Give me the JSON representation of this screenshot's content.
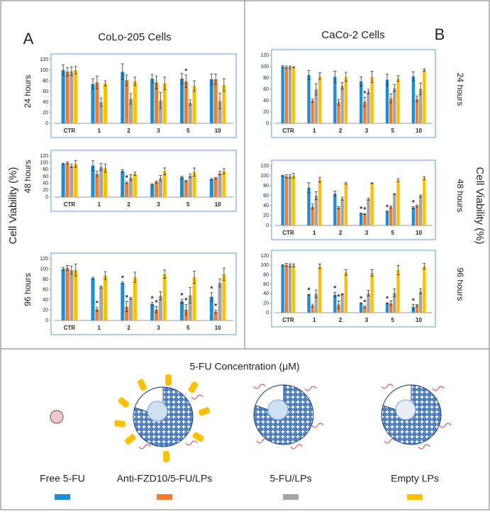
{
  "figure": {
    "label_a": "A",
    "label_b": "B",
    "title_a": "CoLo-205 Cells",
    "title_b": "CaCo-2 Cells",
    "ylabel": "Cell Viability  (%)",
    "xlabel": "5-FU Concentration (μM)"
  },
  "chart_data": [
    {
      "type": "bar",
      "ylabel": "24 hours",
      "categories": [
        "CTR",
        "1",
        "2",
        "3",
        "5",
        "10"
      ],
      "ylim": [
        0,
        120
      ],
      "yticks": [
        0,
        20,
        40,
        60,
        80,
        100,
        120
      ],
      "series": [
        {
          "name": "Free 5-FU",
          "color": "#1f8dd6",
          "values": [
            100,
            74,
            97,
            84,
            84,
            83
          ],
          "errors": [
            10,
            10,
            15,
            8,
            10,
            10
          ]
        },
        {
          "name": "Anti-FZD10/5-FU/LPs",
          "color": "#ed7d31",
          "values": [
            97,
            77,
            81,
            77,
            79,
            83
          ],
          "errors": [
            8,
            12,
            10,
            12,
            12,
            10
          ]
        },
        {
          "name": "5-FU/LPs",
          "color": "#a5a5a5",
          "values": [
            98,
            40,
            46,
            43,
            39,
            42
          ],
          "errors": [
            8,
            8,
            10,
            15,
            5,
            15
          ]
        },
        {
          "name": "Empty LPs",
          "color": "#ffc000",
          "values": [
            100,
            75,
            79,
            75,
            70,
            72
          ],
          "errors": [
            7,
            5,
            8,
            12,
            10,
            12
          ]
        }
      ],
      "annotations": [
        {
          "text": "*",
          "series": 1,
          "index": 4
        }
      ]
    },
    {
      "type": "bar",
      "ylabel": "48 hours",
      "categories": [
        "CTR",
        "1",
        "2",
        "3",
        "5",
        "10"
      ],
      "ylim": [
        0,
        120
      ],
      "yticks": [
        0,
        20,
        40,
        60,
        80,
        100,
        120
      ],
      "series": [
        {
          "name": "Free 5-FU",
          "color": "#1f8dd6",
          "values": [
            97,
            92,
            76,
            37,
            58,
            52
          ],
          "errors": [
            2,
            14,
            4,
            2,
            3,
            2
          ]
        },
        {
          "name": "Anti-FZD10/5-FU/LPs",
          "color": "#ed7d31",
          "values": [
            99,
            68,
            42,
            44,
            47,
            55
          ],
          "errors": [
            3,
            8,
            3,
            3,
            2,
            2
          ]
        },
        {
          "name": "5-FU/LPs",
          "color": "#a5a5a5",
          "values": [
            91,
            88,
            57,
            55,
            62,
            70
          ],
          "errors": [
            5,
            10,
            8,
            8,
            5,
            5
          ]
        },
        {
          "name": "Empty LPs",
          "color": "#ffc000",
          "values": [
            97,
            84,
            68,
            75,
            73,
            75
          ],
          "errors": [
            10,
            12,
            5,
            10,
            12,
            8
          ]
        }
      ],
      "annotations": [
        {
          "text": "*",
          "series": 1,
          "index": 2
        }
      ]
    },
    {
      "type": "bar",
      "ylabel": "96 hours",
      "categories": [
        "CTR",
        "1",
        "2",
        "3",
        "5",
        "10"
      ],
      "ylim": [
        0,
        120
      ],
      "yticks": [
        0,
        20,
        40,
        60,
        80,
        100,
        120
      ],
      "series": [
        {
          "name": "Free 5-FU",
          "color": "#1f8dd6",
          "values": [
            100,
            82,
            73,
            32,
            37,
            46
          ],
          "errors": [
            3,
            2,
            2,
            3,
            4,
            8
          ]
        },
        {
          "name": "Anti-FZD10/5-FU/LPs",
          "color": "#ed7d31",
          "values": [
            102,
            22,
            27,
            21,
            21,
            17
          ],
          "errors": [
            5,
            4,
            10,
            6,
            10,
            3
          ]
        },
        {
          "name": "5-FU/LPs",
          "color": "#a5a5a5",
          "values": [
            98,
            65,
            43,
            48,
            49,
            73
          ],
          "errors": [
            8,
            2,
            2,
            8,
            15,
            8
          ]
        },
        {
          "name": "Empty LPs",
          "color": "#ffc000",
          "values": [
            98,
            87,
            84,
            90,
            84,
            90
          ],
          "errors": [
            12,
            8,
            10,
            8,
            12,
            12
          ]
        }
      ],
      "annotations": [
        {
          "text": "*",
          "series": 1,
          "index": 1
        },
        {
          "text": "*",
          "series": 0,
          "index": 2
        },
        {
          "text": "*",
          "series": 1,
          "index": 2
        },
        {
          "text": "*",
          "series": 0,
          "index": 3
        },
        {
          "text": "*",
          "series": 1,
          "index": 3
        },
        {
          "text": "*",
          "series": 0,
          "index": 4
        },
        {
          "text": "*",
          "series": 1,
          "index": 4
        },
        {
          "text": "*",
          "series": 0,
          "index": 5
        },
        {
          "text": "*",
          "series": 1,
          "index": 5
        }
      ]
    },
    {
      "type": "bar",
      "ylabel": "24 hours",
      "categories": [
        "CTR",
        "1",
        "2",
        "3",
        "5",
        "10"
      ],
      "ylim": [
        0,
        120
      ],
      "yticks": [
        0,
        20,
        40,
        60,
        80,
        100,
        120
      ],
      "series": [
        {
          "name": "Free 5-FU",
          "color": "#1f8dd6",
          "values": [
            100,
            85,
            82,
            74,
            77,
            83
          ],
          "errors": [
            2,
            8,
            10,
            8,
            10,
            8
          ]
        },
        {
          "name": "Anti-FZD10/5-FU/LPs",
          "color": "#ed7d31",
          "values": [
            99,
            40,
            37,
            38,
            44,
            43
          ],
          "errors": [
            2,
            3,
            5,
            8,
            8,
            5
          ]
        },
        {
          "name": "5-FU/LPs",
          "color": "#a5a5a5",
          "values": [
            99,
            60,
            66,
            56,
            62,
            61
          ],
          "errors": [
            2,
            10,
            6,
            4,
            6,
            10
          ]
        },
        {
          "name": "Empty LPs",
          "color": "#ffc000",
          "values": [
            99,
            83,
            82,
            82,
            79,
            94
          ],
          "errors": [
            1,
            6,
            8,
            10,
            5,
            2
          ]
        }
      ],
      "annotations": [
        {
          "text": "*",
          "series": 1,
          "index": 3
        }
      ]
    },
    {
      "type": "bar",
      "ylabel": "48 hours",
      "categories": [
        "CTR",
        "1",
        "2",
        "3",
        "5",
        "10"
      ],
      "ylim": [
        0,
        120
      ],
      "yticks": [
        0,
        20,
        40,
        60,
        80,
        100,
        120
      ],
      "series": [
        {
          "name": "Free 5-FU",
          "color": "#1f8dd6",
          "values": [
            100,
            76,
            64,
            24,
            28,
            36
          ],
          "errors": [
            1,
            10,
            5,
            1,
            1,
            2
          ]
        },
        {
          "name": "Anti-FZD10/5-FU/LPs",
          "color": "#ed7d31",
          "values": [
            99,
            38,
            36,
            23,
            37,
            39
          ],
          "errors": [
            3,
            5,
            2,
            1,
            2,
            2
          ]
        },
        {
          "name": "5-FU/LPs",
          "color": "#a5a5a5",
          "values": [
            99,
            60,
            54,
            53,
            63,
            59
          ],
          "errors": [
            3,
            8,
            3,
            2,
            1,
            2
          ]
        },
        {
          "name": "Empty LPs",
          "color": "#ffc000",
          "values": [
            100,
            92,
            85,
            85,
            91,
            95
          ],
          "errors": [
            5,
            5,
            2,
            1,
            3,
            3
          ]
        }
      ],
      "annotations": [
        {
          "text": "*",
          "series": 0,
          "index": 3
        },
        {
          "text": "*",
          "series": 1,
          "index": 3
        },
        {
          "text": "*",
          "series": 0,
          "index": 4
        },
        {
          "text": "*",
          "series": 0,
          "index": 5
        }
      ]
    },
    {
      "type": "bar",
      "ylabel": "96 hours",
      "categories": [
        "CTR",
        "1",
        "2",
        "3",
        "5",
        "10"
      ],
      "ylim": [
        0,
        120
      ],
      "yticks": [
        0,
        20,
        40,
        60,
        80,
        100,
        120
      ],
      "series": [
        {
          "name": "Free 5-FU",
          "color": "#1f8dd6",
          "values": [
            100,
            38,
            38,
            20,
            20,
            12
          ],
          "errors": [
            1,
            1,
            5,
            1,
            1,
            5
          ]
        },
        {
          "name": "Anti-FZD10/5-FU/LPs",
          "color": "#ed7d31",
          "values": [
            101,
            15,
            17,
            12,
            20,
            15
          ],
          "errors": [
            3,
            3,
            8,
            2,
            5,
            2
          ]
        },
        {
          "name": "5-FU/LPs",
          "color": "#a5a5a5",
          "values": [
            100,
            40,
            39,
            41,
            42,
            45
          ],
          "errors": [
            3,
            8,
            1,
            6,
            8,
            5
          ]
        },
        {
          "name": "Empty LPs",
          "color": "#ffc000",
          "values": [
            100,
            98,
            85,
            84,
            90,
            98
          ],
          "errors": [
            3,
            5,
            6,
            7,
            10,
            6
          ]
        }
      ],
      "annotations": [
        {
          "text": "*",
          "series": 0,
          "index": 1
        },
        {
          "text": "*",
          "series": 0,
          "index": 2
        },
        {
          "text": "*",
          "series": 1,
          "index": 2
        },
        {
          "text": "*",
          "series": 0,
          "index": 3
        },
        {
          "text": "*",
          "series": 1,
          "index": 3
        },
        {
          "text": "*",
          "series": 0,
          "index": 4
        },
        {
          "text": "*",
          "series": 0,
          "index": 5
        }
      ]
    }
  ]
}
